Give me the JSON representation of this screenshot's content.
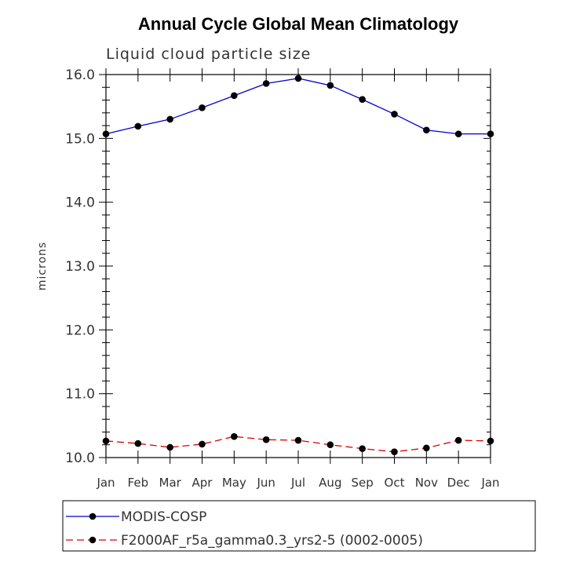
{
  "chart_data": {
    "type": "line",
    "title": "Annual Cycle Global Mean Climatology",
    "subtitle": "Liquid cloud particle size",
    "xlabel": "",
    "ylabel": "microns",
    "categories": [
      "Jan",
      "Feb",
      "Mar",
      "Apr",
      "May",
      "Jun",
      "Jul",
      "Aug",
      "Sep",
      "Oct",
      "Nov",
      "Dec",
      "Jan"
    ],
    "ylim": [
      10.0,
      16.0
    ],
    "yticks": [
      "10.0",
      "11.0",
      "12.0",
      "13.0",
      "14.0",
      "15.0",
      "16.0"
    ],
    "series": [
      {
        "name": "MODIS-COSP",
        "color": "#0000cc",
        "dash": "solid",
        "values": [
          15.07,
          15.19,
          15.3,
          15.48,
          15.67,
          15.86,
          15.94,
          15.83,
          15.61,
          15.38,
          15.13,
          15.07,
          15.07
        ]
      },
      {
        "name": "F2000AF_r5a_gamma0.3_yrs2-5 (0002-0005)",
        "color": "#dd0000",
        "dash": "dashed",
        "values": [
          10.26,
          10.22,
          10.16,
          10.21,
          10.33,
          10.28,
          10.27,
          10.2,
          10.14,
          10.09,
          10.15,
          10.27,
          10.26
        ]
      }
    ],
    "legend": "bottom"
  }
}
